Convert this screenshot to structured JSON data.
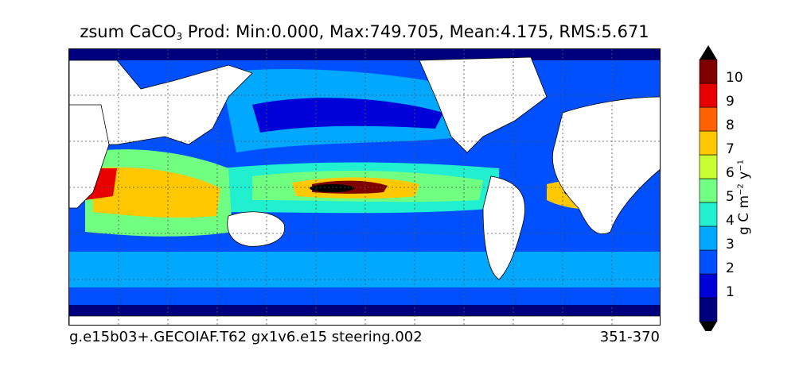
{
  "title": {
    "prefix": "zsum CaCO",
    "subscript": "3",
    "rest": " Prod: Min:0.000, Max:749.705, Mean:4.175, RMS:5.671"
  },
  "footer": {
    "case": "g.e15b03+.GECOIAF.T62 gx1v6.e15 steering.002",
    "years": "351-370"
  },
  "colorbar": {
    "label_main": "g C m",
    "label_exp1": "−2",
    "label_mid": " y",
    "label_exp2": "−1",
    "ticks": [
      "1",
      "2",
      "3",
      "4",
      "5",
      "6",
      "7",
      "8",
      "9",
      "10"
    ],
    "colors": [
      "#00007f",
      "#0000d8",
      "#0050ff",
      "#00a8ff",
      "#20f0d0",
      "#70ff80",
      "#c8ff30",
      "#ffc800",
      "#ff6000",
      "#e80000",
      "#800000"
    ],
    "extend": "both"
  },
  "map": {
    "grid": true,
    "land_color": "#ffffff",
    "colormap": "jet"
  }
}
